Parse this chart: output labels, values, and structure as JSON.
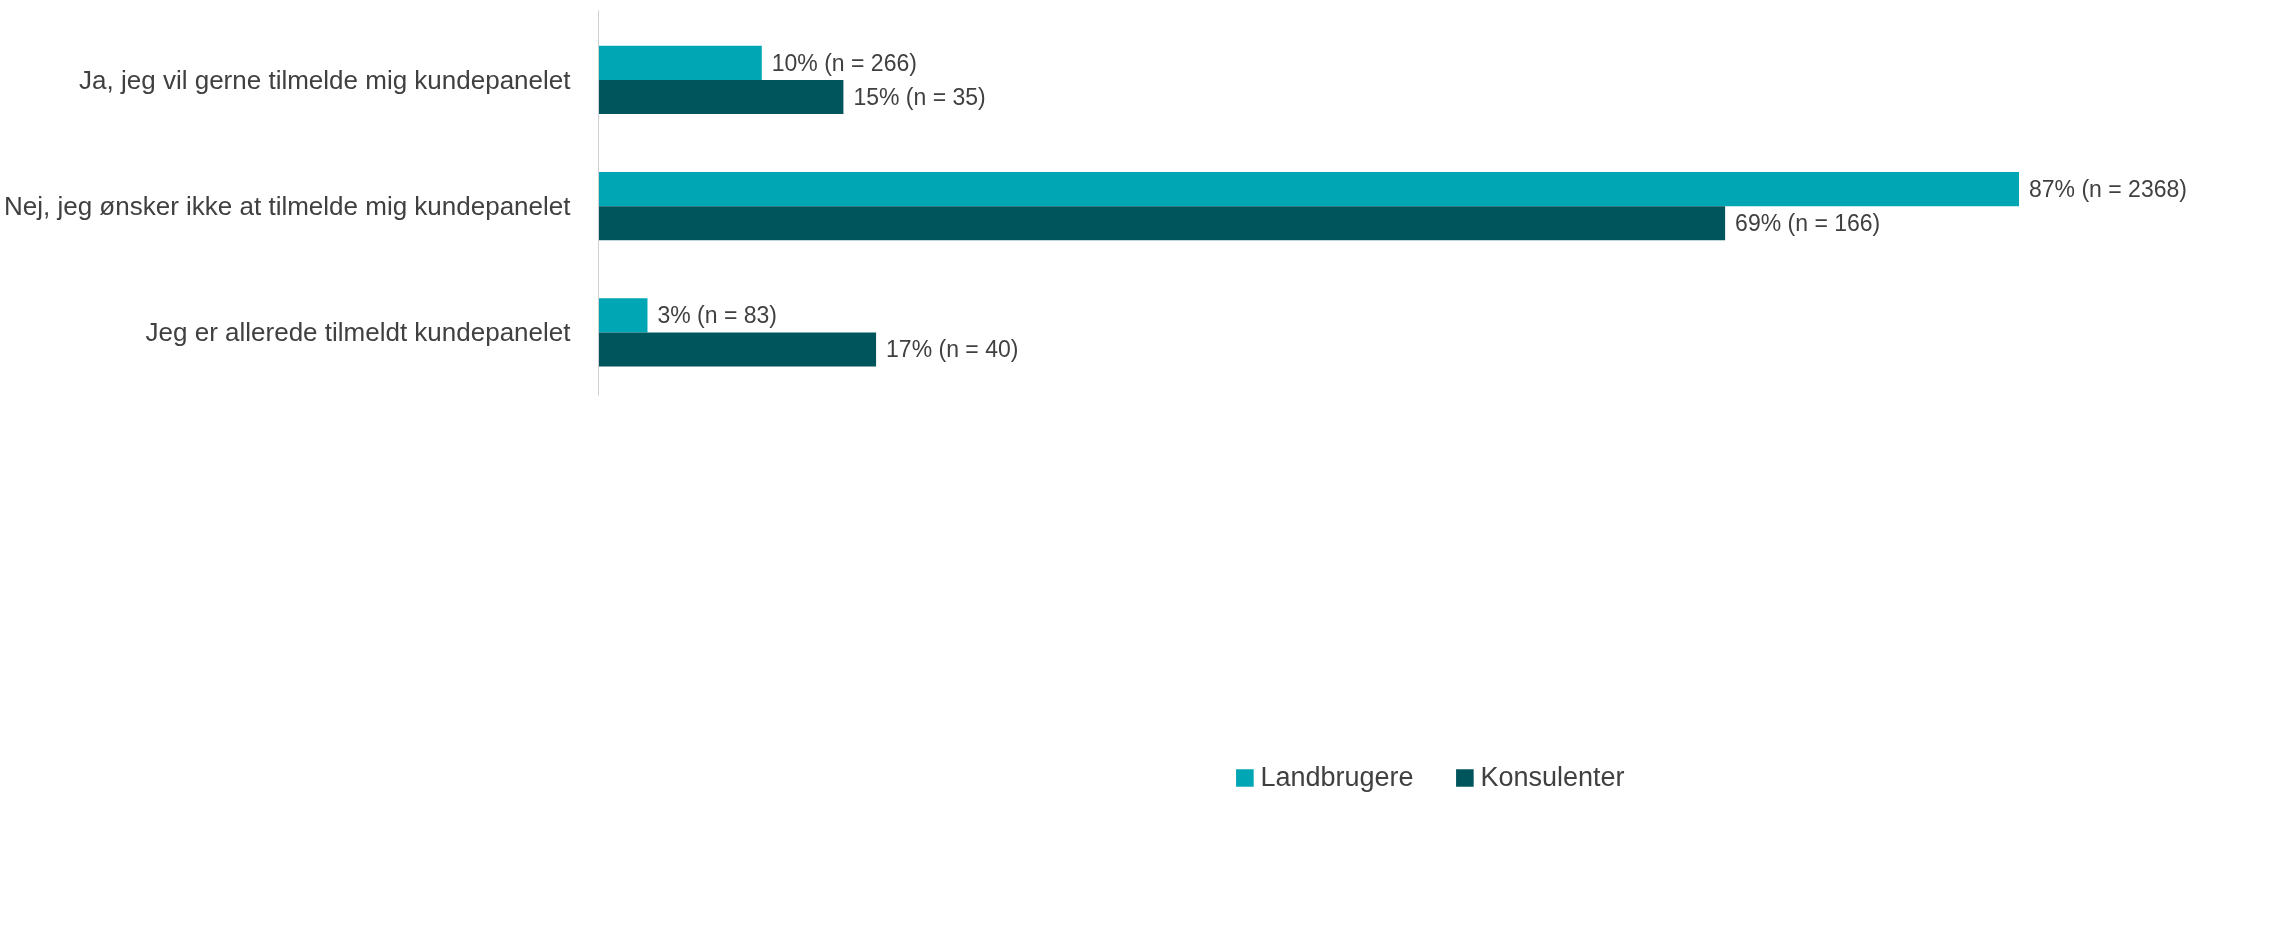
{
  "chart_data": {
    "type": "bar",
    "orientation": "horizontal",
    "categories": [
      "Ja, jeg vil gerne tilmelde mig kundepanelet",
      "Nej, jeg ønsker ikke at tilmelde mig kundepanelet",
      "Jeg er allerede tilmeldt kundepanelet"
    ],
    "series": [
      {
        "name": "Landbrugere",
        "color": "#00a6b4",
        "values": [
          10,
          87,
          3
        ],
        "value_labels": [
          "10% (n = 266)",
          "87% (n = 2368)",
          "3% (n = 83)"
        ]
      },
      {
        "name": "Konsulenter",
        "color": "#00545c",
        "values": [
          15,
          69,
          17
        ],
        "value_labels": [
          "15% (n = 35)",
          "69% (n = 166)",
          "17% (n = 40)"
        ]
      }
    ],
    "legend": "bottom",
    "grid": false
  }
}
